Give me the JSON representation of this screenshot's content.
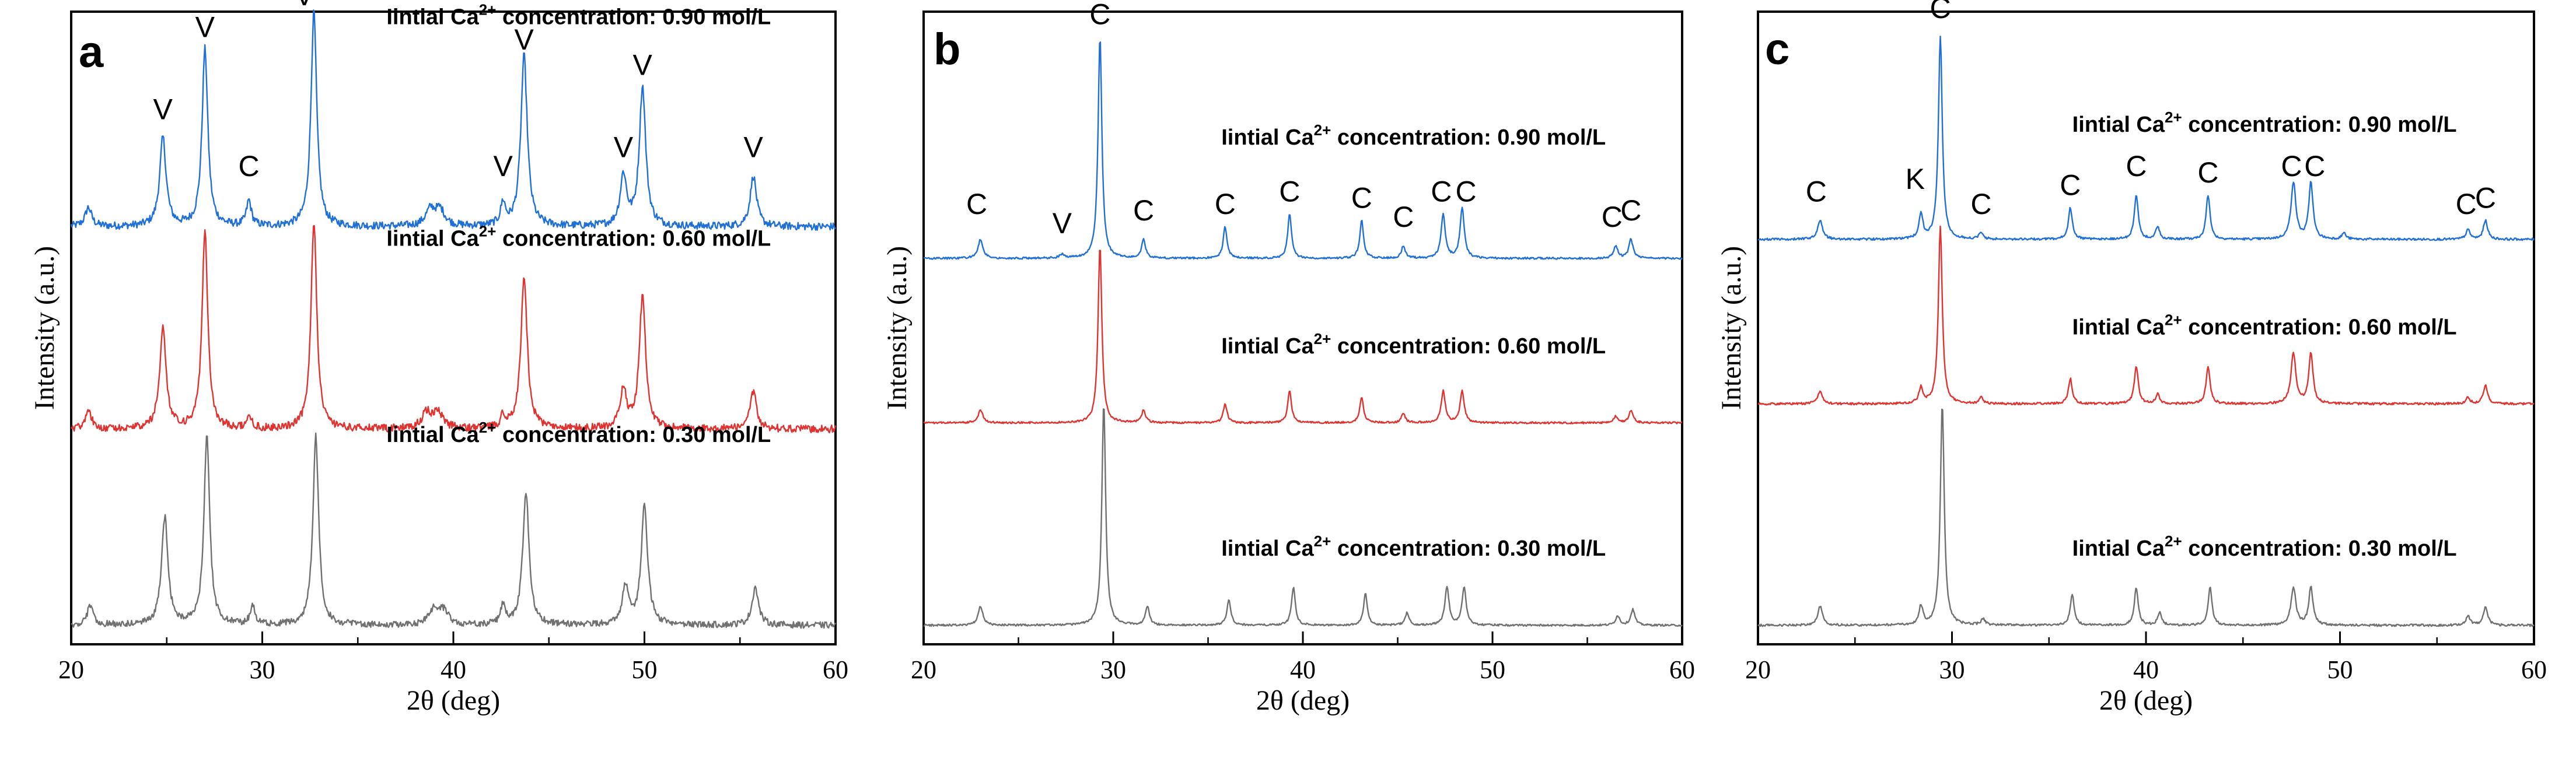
{
  "chart_data": [
    {
      "panel": "a",
      "type": "line",
      "xlabel": "2θ (deg)",
      "ylabel": "Intensity (a.u.)",
      "xlim": [
        20,
        60
      ],
      "ylim": [
        0,
        100
      ],
      "xticks": [
        20,
        30,
        40,
        50,
        60
      ],
      "series": [
        {
          "name": "Iintial Ca2+ concentration: 0.90 mol/L",
          "color": "#1f6fd6",
          "offset": 66,
          "noise": 1.2,
          "peaks": [
            [
              20.9,
              3,
              0.2
            ],
            [
              24.8,
              14,
              0.2
            ],
            [
              27.0,
              28,
              0.18
            ],
            [
              29.3,
              4,
              0.15
            ],
            [
              32.7,
              34,
              0.18
            ],
            [
              38.8,
              2.5,
              0.3
            ],
            [
              39.3,
              2.5,
              0.3
            ],
            [
              42.6,
              3.5,
              0.15
            ],
            [
              43.7,
              27,
              0.2
            ],
            [
              48.9,
              8,
              0.2
            ],
            [
              49.9,
              22,
              0.2
            ],
            [
              55.7,
              8,
              0.2
            ]
          ]
        },
        {
          "name": "Iintial Ca2+ concentration: 0.60 mol/L",
          "color": "#e0322f",
          "offset": 34,
          "noise": 1.2,
          "peaks": [
            [
              20.9,
              3,
              0.2
            ],
            [
              24.8,
              16,
              0.2
            ],
            [
              27.0,
              31,
              0.18
            ],
            [
              29.3,
              2,
              0.15
            ],
            [
              32.7,
              33,
              0.18
            ],
            [
              38.6,
              2.5,
              0.3
            ],
            [
              39.2,
              2.5,
              0.3
            ],
            [
              42.6,
              2,
              0.15
            ],
            [
              43.7,
              24,
              0.2
            ],
            [
              48.9,
              6,
              0.2
            ],
            [
              49.9,
              21,
              0.2
            ],
            [
              55.7,
              6,
              0.2
            ]
          ]
        },
        {
          "name": "Iintial Ca2+ concentration: 0.30 mol/L",
          "color": "#707070",
          "offset": 3,
          "noise": 1.0,
          "peaks": [
            [
              21.0,
              3,
              0.2
            ],
            [
              24.9,
              17,
              0.2
            ],
            [
              27.1,
              30,
              0.18
            ],
            [
              29.5,
              3,
              0.15
            ],
            [
              32.8,
              30,
              0.18
            ],
            [
              39.0,
              2.5,
              0.3
            ],
            [
              39.5,
              2,
              0.3
            ],
            [
              42.6,
              3,
              0.15
            ],
            [
              43.8,
              21,
              0.2
            ],
            [
              49.0,
              6,
              0.2
            ],
            [
              50.0,
              19,
              0.2
            ],
            [
              55.8,
              6,
              0.2
            ]
          ]
        }
      ],
      "peak_labels": [
        {
          "text": "V",
          "x": 24.8,
          "y": 83
        },
        {
          "text": "V",
          "x": 27.0,
          "y": 96
        },
        {
          "text": "C",
          "x": 29.3,
          "y": 74
        },
        {
          "text": "V",
          "x": 32.2,
          "y": 101
        },
        {
          "text": "V",
          "x": 42.6,
          "y": 74
        },
        {
          "text": "V",
          "x": 43.7,
          "y": 94
        },
        {
          "text": "V",
          "x": 48.9,
          "y": 77
        },
        {
          "text": "V",
          "x": 49.9,
          "y": 90
        },
        {
          "text": "V",
          "x": 55.7,
          "y": 77
        }
      ],
      "annotations": [
        {
          "pre": "Iintial Ca",
          "sup": "2+",
          "post": " concentration: 0.90 mol/L",
          "x": 36.5,
          "y": 98
        },
        {
          "pre": "Iintial Ca",
          "sup": "2+",
          "post": " concentration: 0.60 mol/L",
          "x": 36.5,
          "y": 63
        },
        {
          "pre": "Iintial Ca",
          "sup": "2+",
          "post": " concentration: 0.30 mol/L",
          "x": 36.5,
          "y": 32
        }
      ]
    },
    {
      "panel": "b",
      "type": "line",
      "xlabel": "2θ (deg)",
      "ylabel": "Intensity (a.u.)",
      "xlim": [
        20,
        60
      ],
      "ylim": [
        0,
        100
      ],
      "xticks": [
        20,
        30,
        40,
        50,
        60
      ],
      "series": [
        {
          "name": "Iintial Ca2+ concentration: 0.90 mol/L",
          "color": "#1f6fd6",
          "offset": 61,
          "noise": 0.3,
          "peaks": [
            [
              23.0,
              3,
              0.15
            ],
            [
              27.3,
              0.6,
              0.15
            ],
            [
              29.3,
              35,
              0.12
            ],
            [
              31.6,
              3,
              0.12
            ],
            [
              35.9,
              5,
              0.12
            ],
            [
              39.3,
              7,
              0.12
            ],
            [
              43.1,
              6,
              0.12
            ],
            [
              45.3,
              2,
              0.12
            ],
            [
              47.4,
              7,
              0.13
            ],
            [
              48.4,
              8,
              0.13
            ],
            [
              56.5,
              2,
              0.13
            ],
            [
              57.3,
              3,
              0.13
            ]
          ]
        },
        {
          "name": "Iintial Ca2+ concentration: 0.60 mol/L",
          "color": "#e0322f",
          "offset": 35,
          "noise": 0.3,
          "peaks": [
            [
              23.0,
              2,
              0.15
            ],
            [
              29.3,
              28,
              0.12
            ],
            [
              31.6,
              2,
              0.12
            ],
            [
              35.9,
              3,
              0.12
            ],
            [
              39.3,
              5,
              0.12
            ],
            [
              43.1,
              4,
              0.12
            ],
            [
              45.3,
              1.5,
              0.12
            ],
            [
              47.4,
              5,
              0.13
            ],
            [
              48.4,
              5,
              0.13
            ],
            [
              56.5,
              1,
              0.13
            ],
            [
              57.3,
              2,
              0.13
            ]
          ]
        },
        {
          "name": "Iintial Ca2+ concentration: 0.30 mol/L",
          "color": "#707070",
          "offset": 3,
          "noise": 0.3,
          "peaks": [
            [
              23.0,
              3,
              0.15
            ],
            [
              29.5,
              35,
              0.12
            ],
            [
              31.8,
              3,
              0.12
            ],
            [
              36.1,
              4,
              0.12
            ],
            [
              39.5,
              6,
              0.12
            ],
            [
              43.3,
              5,
              0.12
            ],
            [
              45.5,
              2,
              0.12
            ],
            [
              47.6,
              6,
              0.13
            ],
            [
              48.5,
              6,
              0.13
            ],
            [
              56.6,
              1.5,
              0.13
            ],
            [
              57.4,
              2.5,
              0.13
            ]
          ]
        }
      ],
      "peak_labels": [
        {
          "text": "C",
          "x": 29.3,
          "y": 98
        },
        {
          "text": "C",
          "x": 22.8,
          "y": 68
        },
        {
          "text": "V",
          "x": 27.3,
          "y": 65
        },
        {
          "text": "C",
          "x": 31.6,
          "y": 67
        },
        {
          "text": "C",
          "x": 35.9,
          "y": 68
        },
        {
          "text": "C",
          "x": 39.3,
          "y": 70
        },
        {
          "text": "C",
          "x": 43.1,
          "y": 69
        },
        {
          "text": "C",
          "x": 45.3,
          "y": 66
        },
        {
          "text": "C",
          "x": 47.3,
          "y": 70
        },
        {
          "text": "C",
          "x": 48.6,
          "y": 70
        },
        {
          "text": "C",
          "x": 56.3,
          "y": 66
        },
        {
          "text": "C",
          "x": 57.3,
          "y": 67
        }
      ],
      "annotations": [
        {
          "pre": "Iintial Ca",
          "sup": "2+",
          "post": " concentration: 0.90 mol/L",
          "x": 35.7,
          "y": 79
        },
        {
          "pre": "Iintial Ca",
          "sup": "2+",
          "post": " concentration: 0.60 mol/L",
          "x": 35.7,
          "y": 46
        },
        {
          "pre": "Iintial Ca",
          "sup": "2+",
          "post": " concentration: 0.30 mol/L",
          "x": 35.7,
          "y": 14
        }
      ]
    },
    {
      "panel": "c",
      "type": "line",
      "xlabel": "2θ (deg)",
      "ylabel": "Intensity (a.u.)",
      "xlim": [
        20,
        60
      ],
      "ylim": [
        0,
        100
      ],
      "xticks": [
        20,
        30,
        40,
        50,
        60
      ],
      "series": [
        {
          "name": "Iintial Ca2+ concentration: 0.90 mol/L",
          "color": "#1f6fd6",
          "offset": 64,
          "noise": 0.35,
          "peaks": [
            [
              23.2,
              3,
              0.15
            ],
            [
              28.4,
              4,
              0.12
            ],
            [
              29.4,
              32,
              0.12
            ],
            [
              31.5,
              1,
              0.12
            ],
            [
              36.1,
              5,
              0.12
            ],
            [
              39.5,
              7,
              0.12
            ],
            [
              40.6,
              2,
              0.12
            ],
            [
              43.2,
              7,
              0.12
            ],
            [
              47.6,
              9,
              0.15
            ],
            [
              48.5,
              9,
              0.13
            ],
            [
              50.2,
              1,
              0.12
            ],
            [
              56.6,
              1.5,
              0.13
            ],
            [
              57.5,
              3,
              0.13
            ]
          ]
        },
        {
          "name": "Iintial Ca2+ concentration: 0.60 mol/L",
          "color": "#e0322f",
          "offset": 38,
          "noise": 0.35,
          "peaks": [
            [
              23.2,
              2,
              0.15
            ],
            [
              28.4,
              2.5,
              0.12
            ],
            [
              29.4,
              28,
              0.12
            ],
            [
              31.5,
              1,
              0.12
            ],
            [
              36.1,
              4,
              0.12
            ],
            [
              39.5,
              6,
              0.12
            ],
            [
              40.6,
              1.5,
              0.12
            ],
            [
              43.2,
              6,
              0.12
            ],
            [
              47.6,
              8,
              0.15
            ],
            [
              48.5,
              8,
              0.13
            ],
            [
              56.6,
              1,
              0.13
            ],
            [
              57.5,
              3,
              0.13
            ]
          ]
        },
        {
          "name": "Iintial Ca2+ concentration: 0.30 mol/L",
          "color": "#707070",
          "offset": 3,
          "noise": 0.35,
          "peaks": [
            [
              23.2,
              3,
              0.15
            ],
            [
              28.4,
              3,
              0.12
            ],
            [
              29.5,
              35,
              0.12
            ],
            [
              31.6,
              1,
              0.12
            ],
            [
              36.2,
              5,
              0.12
            ],
            [
              39.5,
              6,
              0.12
            ],
            [
              40.7,
              2,
              0.12
            ],
            [
              43.3,
              6,
              0.12
            ],
            [
              47.6,
              6,
              0.15
            ],
            [
              48.5,
              6,
              0.13
            ],
            [
              56.6,
              1.5,
              0.13
            ],
            [
              57.5,
              3,
              0.13
            ]
          ]
        }
      ],
      "peak_labels": [
        {
          "text": "C",
          "x": 29.4,
          "y": 99
        },
        {
          "text": "C",
          "x": 23.0,
          "y": 70
        },
        {
          "text": "K",
          "x": 28.1,
          "y": 72
        },
        {
          "text": "C",
          "x": 31.5,
          "y": 68
        },
        {
          "text": "C",
          "x": 36.1,
          "y": 71
        },
        {
          "text": "C",
          "x": 39.5,
          "y": 74
        },
        {
          "text": "C",
          "x": 43.2,
          "y": 73
        },
        {
          "text": "C",
          "x": 47.5,
          "y": 74
        },
        {
          "text": "C",
          "x": 48.7,
          "y": 74
        },
        {
          "text": "C",
          "x": 56.5,
          "y": 68
        },
        {
          "text": "C",
          "x": 57.5,
          "y": 69
        }
      ],
      "annotations": [
        {
          "pre": "Iintial Ca",
          "sup": "2+",
          "post": " concentration: 0.90 mol/L",
          "x": 36.2,
          "y": 81
        },
        {
          "pre": "Iintial Ca",
          "sup": "2+",
          "post": " concentration: 0.60 mol/L",
          "x": 36.2,
          "y": 49
        },
        {
          "pre": "Iintial Ca",
          "sup": "2+",
          "post": " concentration: 0.30 mol/L",
          "x": 36.2,
          "y": 14
        }
      ]
    }
  ]
}
